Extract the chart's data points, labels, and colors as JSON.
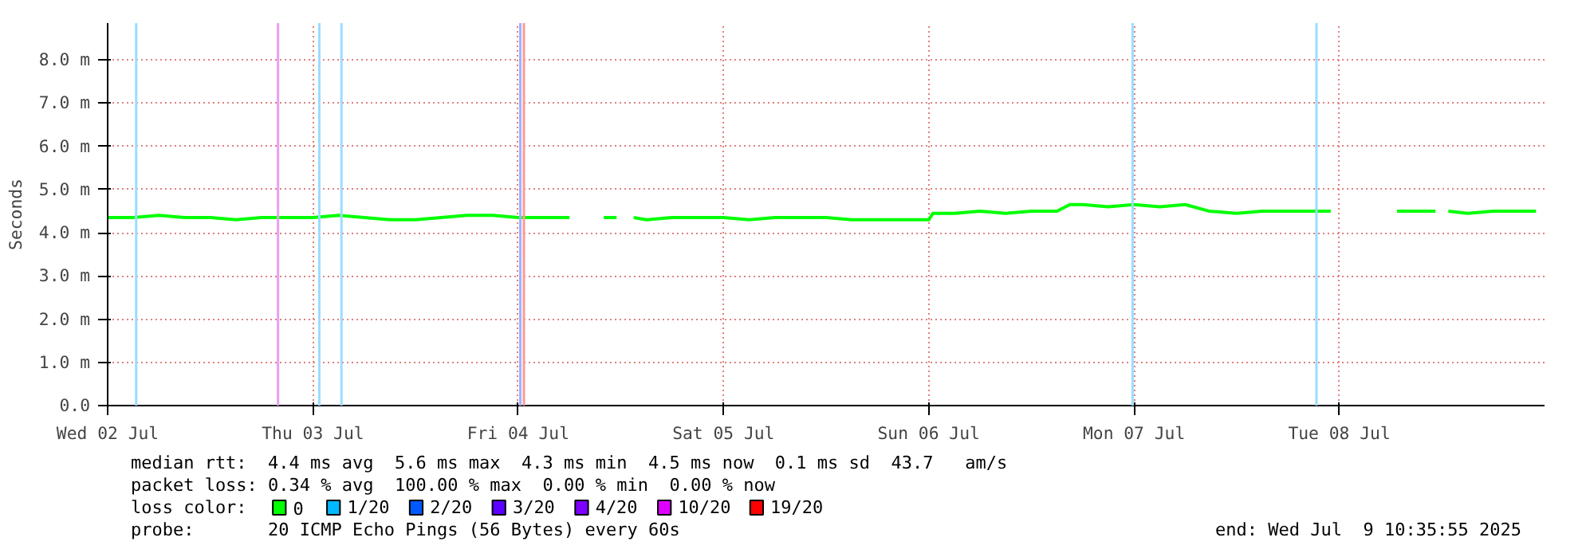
{
  "chart_data": {
    "type": "line",
    "ylabel": "Seconds",
    "xlim": [
      "2025-07-02T00:00",
      "2025-07-09T00:00"
    ],
    "xticks": [
      {
        "value": "2025-07-02",
        "label": "Wed 02 Jul"
      },
      {
        "value": "2025-07-03",
        "label": "Thu 03 Jul"
      },
      {
        "value": "2025-07-04",
        "label": "Fri 04 Jul"
      },
      {
        "value": "2025-07-05",
        "label": "Sat 05 Jul"
      },
      {
        "value": "2025-07-06",
        "label": "Sun 06 Jul"
      },
      {
        "value": "2025-07-07",
        "label": "Mon 07 Jul"
      },
      {
        "value": "2025-07-08",
        "label": "Tue 08 Jul"
      }
    ],
    "ylim": [
      0,
      8.85
    ],
    "yticks": [
      {
        "value": 0,
        "label": "0.0"
      },
      {
        "value": 1,
        "label": "1.0 m"
      },
      {
        "value": 2,
        "label": "2.0 m"
      },
      {
        "value": 3,
        "label": "3.0 m"
      },
      {
        "value": 4,
        "label": "4.0 m"
      },
      {
        "value": 5,
        "label": "5.0 m"
      },
      {
        "value": 6,
        "label": "6.0 m"
      },
      {
        "value": 7,
        "label": "7.0 m"
      },
      {
        "value": 8,
        "label": "8.0 m"
      }
    ],
    "grid": true,
    "legend": "bottom",
    "legend_title": "loss color:",
    "marker": "none",
    "line_style": "solid",
    "x": [
      "2025-07-02T00:00",
      "2025-07-02T03:00",
      "2025-07-02T06:00",
      "2025-07-02T09:00",
      "2025-07-02T12:00",
      "2025-07-02T15:00",
      "2025-07-02T18:00",
      "2025-07-02T21:00",
      "2025-07-03T00:00",
      "2025-07-03T03:00",
      "2025-07-03T06:00",
      "2025-07-03T09:00",
      "2025-07-03T12:00",
      "2025-07-03T15:00",
      "2025-07-03T18:00",
      "2025-07-03T21:00",
      "2025-07-04T00:00",
      "2025-07-04T03:00",
      "2025-07-04T06:00",
      "2025-07-04T09:00",
      "2025-07-04T10:00",
      "2025-07-04T11:30",
      "2025-07-04T12:00",
      "2025-07-04T13:30",
      "2025-07-04T15:00",
      "2025-07-04T18:00",
      "2025-07-04T21:00",
      "2025-07-05T00:00",
      "2025-07-05T03:00",
      "2025-07-05T06:00",
      "2025-07-05T09:00",
      "2025-07-05T12:00",
      "2025-07-05T15:00",
      "2025-07-05T18:00",
      "2025-07-05T21:00",
      "2025-07-06T00:00",
      "2025-07-06T00:30",
      "2025-07-06T03:00",
      "2025-07-06T06:00",
      "2025-07-06T09:00",
      "2025-07-06T12:00",
      "2025-07-06T15:00",
      "2025-07-06T16:30",
      "2025-07-06T18:00",
      "2025-07-06T21:00",
      "2025-07-07T00:00",
      "2025-07-07T03:00",
      "2025-07-07T06:00",
      "2025-07-07T08:45",
      "2025-07-07T12:00",
      "2025-07-07T15:00",
      "2025-07-07T18:00",
      "2025-07-07T21:00",
      "2025-07-07T23:00",
      "2025-07-08T01:00",
      "2025-07-08T06:45",
      "2025-07-08T09:00",
      "2025-07-08T11:15",
      "2025-07-08T12:00",
      "2025-07-08T12:45",
      "2025-07-08T15:00",
      "2025-07-08T18:00",
      "2025-07-08T21:00",
      "2025-07-08T23:00"
    ],
    "series": [
      {
        "name": "0",
        "color": "#00ff00",
        "values": [
          4.35,
          4.35,
          4.4,
          4.35,
          4.35,
          4.3,
          4.35,
          4.35,
          4.35,
          4.4,
          4.35,
          4.3,
          4.3,
          4.35,
          4.4,
          4.4,
          4.35,
          4.35,
          4.35,
          null,
          4.35,
          4.35,
          null,
          4.35,
          4.3,
          4.35,
          4.35,
          4.35,
          4.3,
          4.35,
          4.35,
          4.35,
          4.3,
          4.3,
          4.3,
          4.3,
          4.45,
          4.45,
          4.5,
          4.45,
          4.5,
          4.5,
          4.65,
          4.65,
          4.6,
          4.65,
          4.6,
          4.65,
          4.5,
          4.45,
          4.5,
          4.5,
          4.5,
          4.5,
          null,
          4.5,
          4.5,
          4.5,
          null,
          4.5,
          4.45,
          4.5,
          4.5,
          4.5
        ]
      },
      {
        "name": "1/20",
        "color": "#00b8ff",
        "values": [
          null,
          null,
          null,
          null,
          null,
          null,
          null,
          null,
          null,
          null,
          null,
          null,
          null,
          null,
          null,
          null,
          null,
          null,
          null,
          null,
          null,
          null,
          null,
          null,
          null,
          null,
          null,
          null,
          null,
          null,
          null,
          null,
          null,
          null,
          null,
          null,
          null,
          null,
          null,
          null,
          null,
          null,
          null,
          null,
          null,
          null,
          null,
          null,
          null,
          null,
          null,
          null,
          null,
          null,
          null,
          null,
          null,
          null,
          null,
          null,
          null,
          null,
          null,
          null
        ]
      },
      {
        "name": "2/20",
        "color": "#0059ff",
        "values": [
          null,
          null,
          null,
          null,
          null,
          null,
          null,
          null,
          null,
          null,
          null,
          null,
          null,
          null,
          null,
          null,
          null,
          null,
          null,
          null,
          null,
          null,
          null,
          null,
          null,
          null,
          null,
          null,
          null,
          null,
          null,
          null,
          null,
          null,
          null,
          null,
          null,
          null,
          null,
          null,
          null,
          null,
          null,
          null,
          null,
          null,
          null,
          null,
          null,
          null,
          null,
          null,
          null,
          null,
          null,
          null,
          null,
          null,
          null,
          null,
          null,
          null,
          null,
          null
        ]
      },
      {
        "name": "3/20",
        "color": "#5e00ff",
        "values": [
          null,
          null,
          null,
          null,
          null,
          null,
          null,
          null,
          null,
          null,
          null,
          null,
          null,
          null,
          null,
          null,
          null,
          null,
          null,
          null,
          null,
          null,
          null,
          null,
          null,
          null,
          null,
          null,
          null,
          null,
          null,
          null,
          null,
          null,
          null,
          null,
          null,
          null,
          null,
          null,
          null,
          null,
          null,
          null,
          null,
          null,
          null,
          null,
          null,
          null,
          null,
          null,
          null,
          null,
          null,
          null,
          null,
          null,
          null,
          null,
          null,
          null,
          null,
          null
        ]
      },
      {
        "name": "4/20",
        "color": "#7e00ff",
        "values": [
          null,
          null,
          null,
          null,
          null,
          null,
          null,
          null,
          null,
          null,
          null,
          null,
          null,
          null,
          null,
          null,
          null,
          null,
          null,
          null,
          null,
          null,
          null,
          null,
          null,
          null,
          null,
          null,
          null,
          null,
          null,
          null,
          null,
          null,
          null,
          null,
          null,
          null,
          null,
          null,
          null,
          null,
          null,
          null,
          null,
          null,
          null,
          null,
          null,
          null,
          null,
          null,
          null,
          null,
          null,
          null,
          null,
          null,
          null,
          null,
          null,
          null,
          null,
          null
        ]
      },
      {
        "name": "10/20",
        "color": "#dd00ff",
        "values": [
          null,
          null,
          null,
          null,
          null,
          null,
          null,
          null,
          null,
          null,
          null,
          null,
          null,
          null,
          null,
          null,
          null,
          null,
          null,
          null,
          null,
          null,
          null,
          null,
          null,
          null,
          null,
          null,
          null,
          null,
          null,
          null,
          null,
          null,
          null,
          null,
          null,
          null,
          null,
          null,
          null,
          null,
          null,
          null,
          null,
          null,
          null,
          null,
          null,
          null,
          null,
          null,
          null,
          null,
          null,
          null,
          null,
          null,
          null,
          null,
          null,
          null,
          null,
          null
        ]
      },
      {
        "name": "19/20",
        "color": "#ff0000",
        "values": [
          null,
          null,
          null,
          null,
          null,
          null,
          null,
          null,
          null,
          null,
          null,
          null,
          null,
          null,
          null,
          null,
          null,
          null,
          null,
          null,
          null,
          null,
          null,
          null,
          null,
          null,
          null,
          null,
          null,
          null,
          null,
          null,
          null,
          null,
          null,
          null,
          null,
          null,
          null,
          null,
          null,
          null,
          null,
          null,
          null,
          null,
          null,
          null,
          null,
          null,
          null,
          null,
          null,
          null,
          null,
          null,
          null,
          null,
          null,
          null,
          null,
          null,
          null,
          null
        ]
      }
    ],
    "ref_lines": [
      {
        "axis": "x",
        "value": "2025-07-02T03:20",
        "color": "#99ddff"
      },
      {
        "axis": "x",
        "value": "2025-07-02T19:55",
        "color": "#e8a0f0"
      },
      {
        "axis": "x",
        "value": "2025-07-03T00:45",
        "color": "#99ddff"
      },
      {
        "axis": "x",
        "value": "2025-07-03T03:20",
        "color": "#99ddff"
      },
      {
        "axis": "x",
        "value": "2025-07-04T00:15",
        "color": "#a0b0ff"
      },
      {
        "axis": "x",
        "value": "2025-07-04T00:40",
        "color": "#ff9999"
      },
      {
        "axis": "x",
        "value": "2025-07-06T23:50",
        "color": "#99ddff"
      },
      {
        "axis": "x",
        "value": "2025-07-07T21:20",
        "color": "#99ddff"
      }
    ],
    "annotations": [
      "median rtt:  4.4 ms avg  5.6 ms max  4.3 ms min  4.5 ms now  0.1 ms sd  43.7   am/s",
      "packet loss: 0.34 % avg  100.00 % max  0.00 % min  0.00 % now",
      "probe:       20 ICMP Echo Pings (56 Bytes) every 60s",
      "end: Wed Jul  9 10:35:55 2025"
    ]
  }
}
